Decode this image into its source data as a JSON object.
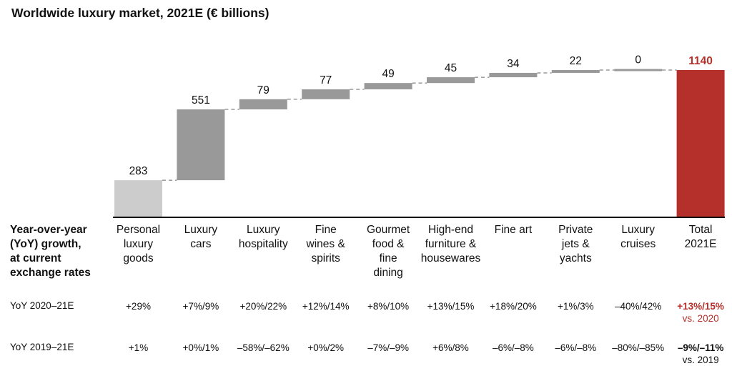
{
  "title": "Worldwide luxury market, 2021E (€ billions)",
  "chart_data": {
    "type": "bar",
    "subtype": "waterfall",
    "categories": [
      "Personal luxury goods",
      "Luxury cars",
      "Luxury hospitality",
      "Fine wines & spirits",
      "Gourmet food & fine dining",
      "High-end furniture & housewares",
      "Fine art",
      "Private jets & yachts",
      "Luxury cruises",
      "Total 2021E"
    ],
    "category_lines": [
      [
        "Personal",
        "luxury",
        "goods"
      ],
      [
        "Luxury",
        "cars"
      ],
      [
        "Luxury",
        "hospitality"
      ],
      [
        "Fine",
        "wines &",
        "spirits"
      ],
      [
        "Gourmet",
        "food &",
        "fine",
        "dining"
      ],
      [
        "High-end",
        "furniture &",
        "housewares"
      ],
      [
        "Fine art"
      ],
      [
        "Private",
        "jets &",
        "yachts"
      ],
      [
        "Luxury",
        "cruises"
      ],
      [
        "Total",
        "2021E"
      ]
    ],
    "values": [
      283,
      551,
      79,
      77,
      49,
      45,
      34,
      22,
      0,
      1140
    ],
    "labels": [
      "283",
      "551",
      "79",
      "77",
      "49",
      "45",
      "34",
      "22",
      "0",
      "1140"
    ],
    "total_index": 9,
    "colors": {
      "first": "#cccccc",
      "increment": "#999999",
      "total": "#b5302a",
      "total_label": "#b5302a",
      "connector": "#666666"
    }
  },
  "table": {
    "header": [
      "Year-over-year",
      "(YoY) growth,",
      "at current",
      "exchange rates"
    ],
    "rows": [
      {
        "label": "YoY 2020–21E",
        "values": [
          "+29%",
          "+7%/9%",
          "+20%/22%",
          "+12%/14%",
          "+8%/10%",
          "+13%/15%",
          "+18%/20%",
          "+1%/3%",
          "–40%/42%",
          "+13%/15%"
        ],
        "total_note": "vs. 2020"
      },
      {
        "label": "YoY 2019–21E",
        "values": [
          "+1%",
          "+0%/1%",
          "–58%/–62%",
          "+0%/2%",
          "–7%/–9%",
          "+6%/8%",
          "–6%/–8%",
          "–6%/–8%",
          "–80%/–85%",
          "–9%/–11%"
        ],
        "total_note": "vs. 2019"
      }
    ]
  }
}
